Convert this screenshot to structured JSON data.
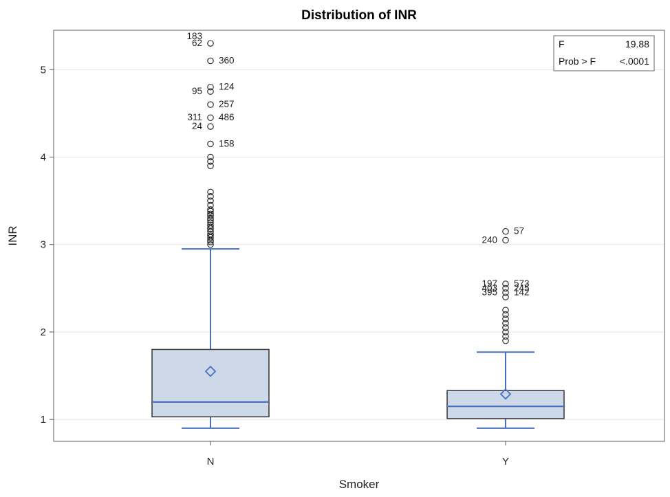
{
  "chart_data": {
    "type": "box",
    "title": "Distribution of INR",
    "xlabel": "Smoker",
    "ylabel": "INR",
    "ylim": [
      0.75,
      5.45
    ],
    "yticks": [
      1,
      2,
      3,
      4,
      5
    ],
    "ytick_labels": [
      "1",
      "2",
      "3",
      "4",
      "5"
    ],
    "grid": true,
    "categories": [
      "N",
      "Y"
    ],
    "boxes": [
      {
        "category": "N",
        "whisker_low": 0.9,
        "q1": 1.03,
        "median": 1.2,
        "q3": 1.8,
        "whisker_high": 2.95,
        "mean": 1.55,
        "outliers": [
          3.0,
          3.03,
          3.05,
          3.08,
          3.1,
          3.12,
          3.15,
          3.18,
          3.2,
          3.22,
          3.25,
          3.28,
          3.3,
          3.33,
          3.35,
          3.38,
          3.4,
          3.45,
          3.5,
          3.55,
          3.6,
          3.9,
          3.95,
          4.0,
          4.15,
          4.35,
          4.45,
          4.6,
          4.75,
          4.8,
          5.1,
          5.3
        ],
        "labeled_outliers": [
          {
            "id": "62",
            "value": 5.3,
            "side": "left"
          },
          {
            "id": "183",
            "value": 5.3,
            "side": "left"
          },
          {
            "id": "360",
            "value": 5.1,
            "side": "right"
          },
          {
            "id": "124",
            "value": 4.8,
            "side": "right"
          },
          {
            "id": "95",
            "value": 4.75,
            "side": "left"
          },
          {
            "id": "257",
            "value": 4.6,
            "side": "right"
          },
          {
            "id": "311",
            "value": 4.45,
            "side": "left"
          },
          {
            "id": "486",
            "value": 4.45,
            "side": "right"
          },
          {
            "id": "24",
            "value": 4.35,
            "side": "left"
          },
          {
            "id": "158",
            "value": 4.15,
            "side": "right"
          }
        ]
      },
      {
        "category": "Y",
        "whisker_low": 0.9,
        "q1": 1.01,
        "median": 1.15,
        "q3": 1.33,
        "whisker_high": 1.77,
        "mean": 1.29,
        "outliers": [
          1.9,
          1.95,
          2.0,
          2.05,
          2.1,
          2.15,
          2.2,
          2.25,
          2.4,
          2.45,
          2.5,
          2.55,
          3.05,
          3.15
        ],
        "labeled_outliers": [
          {
            "id": "57",
            "value": 3.15,
            "side": "right"
          },
          {
            "id": "240",
            "value": 3.05,
            "side": "left"
          },
          {
            "id": "197",
            "value": 2.55,
            "side": "left"
          },
          {
            "id": "573",
            "value": 2.55,
            "side": "right"
          },
          {
            "id": "403",
            "value": 2.5,
            "side": "left"
          },
          {
            "id": "245",
            "value": 2.5,
            "side": "right"
          },
          {
            "id": "395",
            "value": 2.45,
            "side": "left"
          },
          {
            "id": "142",
            "value": 2.45,
            "side": "right"
          }
        ]
      }
    ],
    "stats": [
      {
        "label": "F",
        "value": "19.88"
      },
      {
        "label": "Prob > F",
        "value": "<.0001"
      }
    ],
    "colors": {
      "box_fill": "#cdd8e8",
      "box_stroke": "#333333",
      "line": "#4a6fc1",
      "outlier": "#222222",
      "grid": "#e6e6e6"
    }
  }
}
